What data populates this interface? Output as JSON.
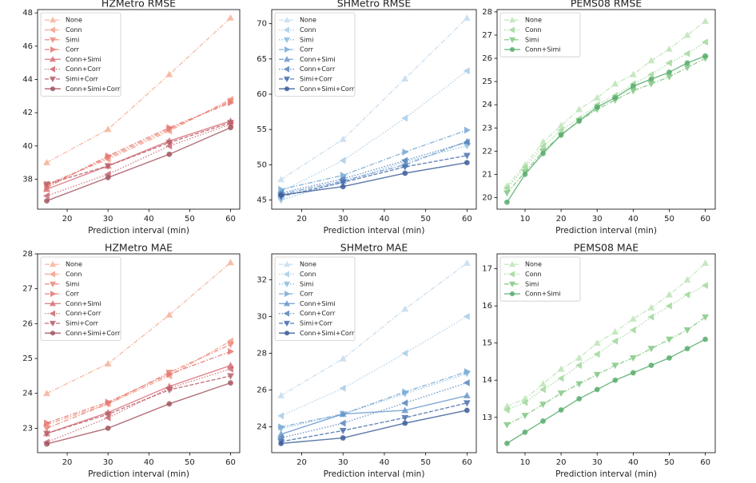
{
  "chart_data": [
    {
      "type": "line",
      "title": "HZMetro RMSE",
      "xlabel": "Prediction interval (min)",
      "x": [
        15,
        30,
        45,
        60
      ],
      "xlim": [
        12.75,
        62.25
      ],
      "xticks": [
        20,
        30,
        40,
        50,
        60
      ],
      "ylim": [
        36.2,
        48.2
      ],
      "yticks": [
        38,
        40,
        42,
        44,
        46,
        48
      ],
      "legend": "upper left",
      "series": [
        {
          "name": "None",
          "color": "#f6b39b",
          "marker": "^",
          "linestyle": "dashdot",
          "values": [
            39.0,
            41.0,
            44.3,
            47.7
          ]
        },
        {
          "name": "Conn",
          "color": "#f3a08a",
          "marker": "<",
          "linestyle": "dashdot",
          "values": [
            37.7,
            39.2,
            40.9,
            42.8
          ]
        },
        {
          "name": "Simi",
          "color": "#ee8b7e",
          "marker": "v",
          "linestyle": "dashdot",
          "values": [
            37.6,
            39.3,
            41.0,
            42.7
          ]
        },
        {
          "name": "Corr",
          "color": "#e47a76",
          "marker": ">",
          "linestyle": "dashdot",
          "values": [
            37.5,
            39.4,
            41.1,
            42.6
          ]
        },
        {
          "name": "Conn+Simi",
          "color": "#d9717a",
          "marker": "^",
          "linestyle": "solid",
          "values": [
            37.4,
            38.8,
            40.3,
            41.5
          ]
        },
        {
          "name": "Conn+Corr",
          "color": "#cb6b74",
          "marker": "<",
          "linestyle": "dotted",
          "values": [
            37.0,
            38.3,
            40.0,
            41.3
          ]
        },
        {
          "name": "Simi+Corr",
          "color": "#b8646f",
          "marker": "v",
          "linestyle": "dashed",
          "values": [
            37.7,
            38.8,
            40.2,
            41.4
          ]
        },
        {
          "name": "Conn+Simi+Corr",
          "color": "#a45862",
          "marker": "o",
          "linestyle": "solid",
          "values": [
            36.7,
            38.1,
            39.5,
            41.1
          ]
        }
      ]
    },
    {
      "type": "line",
      "title": "SHMetro RMSE",
      "xlabel": "Prediction interval (min)",
      "x": [
        15,
        30,
        45,
        60
      ],
      "xlim": [
        12.75,
        62.25
      ],
      "xticks": [
        20,
        30,
        40,
        50,
        60
      ],
      "ylim": [
        43.7,
        72.0
      ],
      "yticks": [
        45,
        50,
        55,
        60,
        65,
        70
      ],
      "legend": "upper left",
      "series": [
        {
          "name": "None",
          "color": "#c6dcef",
          "marker": "^",
          "linestyle": "dashdot",
          "values": [
            47.9,
            53.6,
            62.2,
            70.8
          ]
        },
        {
          "name": "Conn",
          "color": "#a9cde8",
          "marker": "<",
          "linestyle": "dotted",
          "values": [
            46.2,
            50.6,
            56.6,
            63.3
          ]
        },
        {
          "name": "Simi",
          "color": "#8dbde0",
          "marker": "v",
          "linestyle": "dotted",
          "values": [
            45.0,
            47.6,
            50.4,
            52.7
          ]
        },
        {
          "name": "Corr",
          "color": "#7aabd6",
          "marker": ">",
          "linestyle": "dashdot",
          "values": [
            46.5,
            48.5,
            51.8,
            54.9
          ]
        },
        {
          "name": "Conn+Simi",
          "color": "#6b99cc",
          "marker": "^",
          "linestyle": "dashdot",
          "values": [
            45.8,
            47.7,
            50.0,
            53.3
          ]
        },
        {
          "name": "Conn+Corr",
          "color": "#5b86be",
          "marker": "<",
          "linestyle": "dotted",
          "values": [
            46.0,
            48.0,
            50.6,
            53.2
          ]
        },
        {
          "name": "Simi+Corr",
          "color": "#4c72ae",
          "marker": "v",
          "linestyle": "dashed",
          "values": [
            45.5,
            47.5,
            49.7,
            51.3
          ]
        },
        {
          "name": "Conn+Simi+Corr",
          "color": "#3e5f9a",
          "marker": "o",
          "linestyle": "solid",
          "values": [
            45.7,
            46.9,
            48.8,
            50.3
          ]
        }
      ]
    },
    {
      "type": "line",
      "title": "PEMS08 RMSE",
      "xlabel": "Prediction interval (min)",
      "x": [
        5,
        10,
        15,
        20,
        25,
        30,
        35,
        40,
        45,
        50,
        55,
        60
      ],
      "xlim": [
        2.25,
        62.75
      ],
      "xticks": [
        10,
        20,
        30,
        40,
        50,
        60
      ],
      "ylim": [
        19.5,
        28.1
      ],
      "yticks": [
        20,
        21,
        22,
        23,
        24,
        25,
        26,
        27,
        28
      ],
      "legend": "upper left",
      "series": [
        {
          "name": "None",
          "color": "#bfe5b8",
          "marker": "^",
          "linestyle": "dashdot",
          "values": [
            20.5,
            21.4,
            22.4,
            23.1,
            23.8,
            24.3,
            24.9,
            25.3,
            25.9,
            26.4,
            27.0,
            27.6
          ]
        },
        {
          "name": "Conn",
          "color": "#a3d99e",
          "marker": "<",
          "linestyle": "dotted",
          "values": [
            20.4,
            21.3,
            22.2,
            22.9,
            23.4,
            24.0,
            24.4,
            24.9,
            25.3,
            25.8,
            26.2,
            26.7
          ]
        },
        {
          "name": "Simi",
          "color": "#86ca86",
          "marker": "v",
          "linestyle": "dashdot",
          "values": [
            20.2,
            21.1,
            22.0,
            22.7,
            23.3,
            23.8,
            24.2,
            24.6,
            24.9,
            25.2,
            25.6,
            26.0
          ]
        },
        {
          "name": "Conn+Simi",
          "color": "#5aae6f",
          "marker": "o",
          "linestyle": "solid",
          "values": [
            19.8,
            21.0,
            21.9,
            22.7,
            23.3,
            23.9,
            24.3,
            24.8,
            25.1,
            25.4,
            25.8,
            26.1
          ]
        }
      ]
    },
    {
      "type": "line",
      "title": "HZMetro MAE",
      "xlabel": "Prediction interval (min)",
      "x": [
        15,
        30,
        45,
        60
      ],
      "xlim": [
        12.75,
        62.25
      ],
      "xticks": [
        20,
        30,
        40,
        50,
        60
      ],
      "ylim": [
        22.3,
        28.0
      ],
      "yticks": [
        23,
        24,
        25,
        26,
        27,
        28
      ],
      "legend": "upper left",
      "series": [
        {
          "name": "None",
          "color": "#f6b39b",
          "marker": "^",
          "linestyle": "dashdot",
          "values": [
            24.0,
            24.85,
            26.25,
            27.75
          ]
        },
        {
          "name": "Conn",
          "color": "#f3a08a",
          "marker": "<",
          "linestyle": "dashdot",
          "values": [
            23.1,
            23.7,
            24.5,
            25.5
          ]
        },
        {
          "name": "Simi",
          "color": "#ee8b7e",
          "marker": "v",
          "linestyle": "dashdot",
          "values": [
            23.0,
            23.7,
            24.6,
            25.4
          ]
        },
        {
          "name": "Corr",
          "color": "#e47a76",
          "marker": ">",
          "linestyle": "dashdot",
          "values": [
            23.15,
            23.75,
            24.55,
            25.2
          ]
        },
        {
          "name": "Conn+Simi",
          "color": "#d9717a",
          "marker": "^",
          "linestyle": "solid",
          "values": [
            22.85,
            23.45,
            24.2,
            24.8
          ]
        },
        {
          "name": "Conn+Corr",
          "color": "#cb6b74",
          "marker": "<",
          "linestyle": "dotted",
          "values": [
            22.6,
            23.3,
            24.15,
            24.7
          ]
        },
        {
          "name": "Simi+Corr",
          "color": "#b8646f",
          "marker": "v",
          "linestyle": "dashed",
          "values": [
            22.85,
            23.4,
            24.1,
            24.5
          ]
        },
        {
          "name": "Conn+Simi+Corr",
          "color": "#a45862",
          "marker": "o",
          "linestyle": "solid",
          "values": [
            22.55,
            23.0,
            23.7,
            24.3
          ]
        }
      ]
    },
    {
      "type": "line",
      "title": "SHMetro MAE",
      "xlabel": "Prediction interval (min)",
      "x": [
        15,
        30,
        45,
        60
      ],
      "xlim": [
        12.75,
        62.25
      ],
      "xticks": [
        20,
        30,
        40,
        50,
        60
      ],
      "ylim": [
        22.6,
        33.4
      ],
      "yticks": [
        24,
        26,
        28,
        30,
        32
      ],
      "legend": "upper left",
      "series": [
        {
          "name": "None",
          "color": "#c6dcef",
          "marker": "^",
          "linestyle": "dashdot",
          "values": [
            25.7,
            27.7,
            30.4,
            32.9
          ]
        },
        {
          "name": "Conn",
          "color": "#a9cde8",
          "marker": "<",
          "linestyle": "dotted",
          "values": [
            24.6,
            26.1,
            28.0,
            30.0
          ]
        },
        {
          "name": "Simi",
          "color": "#8dbde0",
          "marker": "v",
          "linestyle": "dotted",
          "values": [
            23.9,
            24.7,
            25.8,
            26.9
          ]
        },
        {
          "name": "Corr",
          "color": "#7aabd6",
          "marker": ">",
          "linestyle": "dashdot",
          "values": [
            24.0,
            24.7,
            25.9,
            27.0
          ]
        },
        {
          "name": "Conn+Simi",
          "color": "#6b99cc",
          "marker": "^",
          "linestyle": "solid",
          "values": [
            23.6,
            24.7,
            24.9,
            25.7
          ]
        },
        {
          "name": "Conn+Corr",
          "color": "#5b86be",
          "marker": "<",
          "linestyle": "dotted",
          "values": [
            23.4,
            24.2,
            25.3,
            26.4
          ]
        },
        {
          "name": "Simi+Corr",
          "color": "#4c72ae",
          "marker": "v",
          "linestyle": "dashed",
          "values": [
            23.2,
            23.8,
            24.5,
            25.3
          ]
        },
        {
          "name": "Conn+Simi+Corr",
          "color": "#3e5f9a",
          "marker": "o",
          "linestyle": "solid",
          "values": [
            23.1,
            23.4,
            24.2,
            24.9
          ]
        }
      ]
    },
    {
      "type": "line",
      "title": "PEMS08 MAE",
      "xlabel": "Prediction interval (min)",
      "x": [
        5,
        10,
        15,
        20,
        25,
        30,
        35,
        40,
        45,
        50,
        55,
        60
      ],
      "xlim": [
        2.25,
        62.75
      ],
      "xticks": [
        10,
        20,
        30,
        40,
        50,
        60
      ],
      "ylim": [
        12.05,
        17.4
      ],
      "yticks": [
        13,
        14,
        15,
        16,
        17
      ],
      "legend": "upper left",
      "series": [
        {
          "name": "None",
          "color": "#bfe5b8",
          "marker": "^",
          "linestyle": "dashdot",
          "values": [
            13.3,
            13.5,
            13.9,
            14.3,
            14.6,
            15.0,
            15.3,
            15.65,
            15.95,
            16.3,
            16.7,
            17.15
          ]
        },
        {
          "name": "Conn",
          "color": "#a3d99e",
          "marker": "<",
          "linestyle": "dotted",
          "values": [
            13.2,
            13.4,
            13.75,
            14.05,
            14.4,
            14.7,
            15.05,
            15.35,
            15.7,
            16.0,
            16.3,
            16.55
          ]
        },
        {
          "name": "Simi",
          "color": "#86ca86",
          "marker": "v",
          "linestyle": "dashdot",
          "values": [
            12.8,
            13.05,
            13.35,
            13.65,
            13.9,
            14.15,
            14.4,
            14.6,
            14.85,
            15.1,
            15.35,
            15.7
          ]
        },
        {
          "name": "Conn+Simi",
          "color": "#5aae6f",
          "marker": "o",
          "linestyle": "solid",
          "values": [
            12.3,
            12.6,
            12.9,
            13.2,
            13.5,
            13.75,
            14.0,
            14.2,
            14.4,
            14.6,
            14.85,
            15.1
          ]
        }
      ]
    }
  ]
}
